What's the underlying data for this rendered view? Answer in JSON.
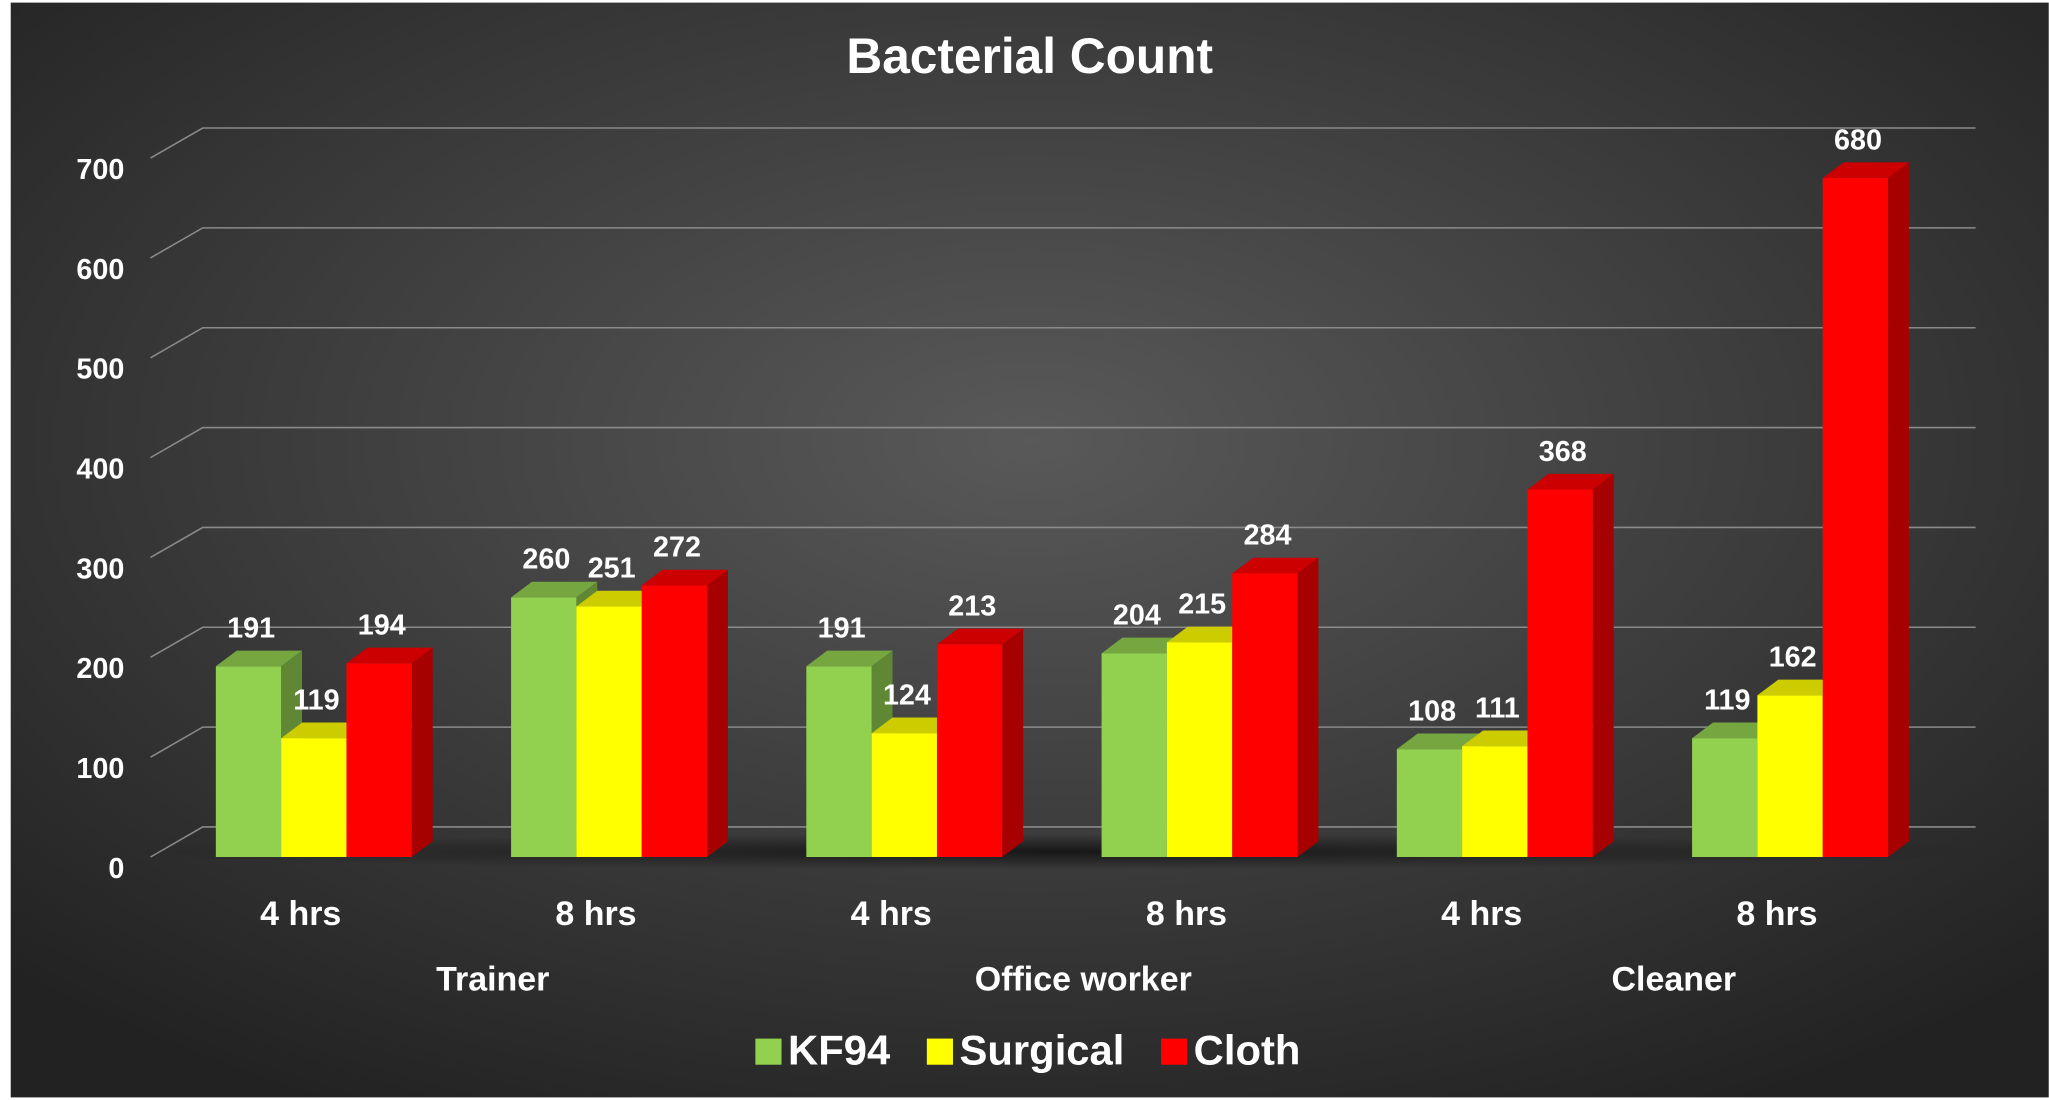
{
  "chart_data": {
    "type": "bar3d",
    "title": "Bacterial Count",
    "categories": [
      "4 hrs",
      "8 hrs",
      "4 hrs",
      "8 hrs",
      "4 hrs",
      "8 hrs"
    ],
    "groups": [
      "Trainer",
      "Office worker",
      "Cleaner"
    ],
    "series": [
      {
        "name": "KF94",
        "color": "#92d050",
        "values": [
          191,
          260,
          191,
          204,
          108,
          119
        ]
      },
      {
        "name": "Surgical",
        "color": "#ffff00",
        "values": [
          119,
          251,
          124,
          215,
          111,
          162
        ]
      },
      {
        "name": "Cloth",
        "color": "#ff0000",
        "values": [
          194,
          272,
          213,
          284,
          368,
          680
        ]
      }
    ],
    "ylim": [
      0,
      700
    ],
    "yticks": [
      0,
      100,
      200,
      300,
      400,
      500,
      600,
      700
    ],
    "grid": true,
    "legend": "bottom"
  }
}
